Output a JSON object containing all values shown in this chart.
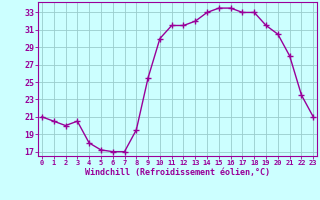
{
  "x": [
    0,
    1,
    2,
    3,
    4,
    5,
    6,
    7,
    8,
    9,
    10,
    11,
    12,
    13,
    14,
    15,
    16,
    17,
    18,
    19,
    20,
    21,
    22,
    23
  ],
  "y": [
    21,
    20.5,
    20,
    20.5,
    18,
    17.2,
    17,
    17,
    19.5,
    25.5,
    30,
    31.5,
    31.5,
    32,
    33,
    33.5,
    33.5,
    33,
    33,
    31.5,
    30.5,
    28,
    23.5,
    21
  ],
  "line_color": "#990099",
  "marker": "+",
  "marker_size": 4,
  "marker_linewidth": 1.0,
  "line_width": 1.0,
  "bg_color": "#ccffff",
  "grid_color": "#99cccc",
  "ylim": [
    16.5,
    34.2
  ],
  "yticks": [
    17,
    19,
    21,
    23,
    25,
    27,
    29,
    31,
    33
  ],
  "xlim": [
    0,
    23
  ],
  "xticks": [
    0,
    1,
    2,
    3,
    4,
    5,
    6,
    7,
    8,
    9,
    10,
    11,
    12,
    13,
    14,
    15,
    16,
    17,
    18,
    19,
    20,
    21,
    22,
    23
  ],
  "xlabel": "Windchill (Refroidissement éolien,°C)",
  "xlabel_color": "#990099",
  "tick_color": "#990099",
  "axis_color": "#990099",
  "tick_fontsize": 5.0,
  "xlabel_fontsize": 6.0
}
